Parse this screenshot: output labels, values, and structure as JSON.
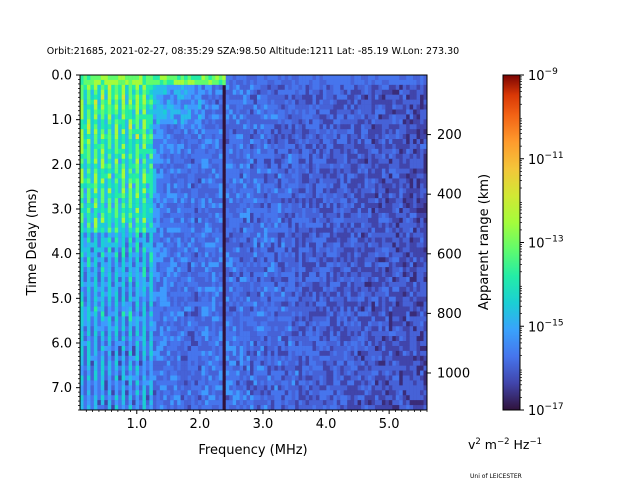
{
  "chart_data": {
    "type": "heatmap",
    "title": "Orbit:21685, 2021-02-27, 08:35:29 SZA:98.50 Altitude:1211 Lat: -85.19 W.Lon: 273.30",
    "xlabel": "Frequency (MHz)",
    "ylabel": "Time Delay (ms)",
    "y2label": "Apparent range (km)",
    "xlim": [
      0.1,
      5.6
    ],
    "ylim": [
      7.5,
      0.0
    ],
    "x_ticks": [
      {
        "value": 1.0,
        "label": "1.0"
      },
      {
        "value": 2.0,
        "label": "2.0"
      },
      {
        "value": 3.0,
        "label": "3.0"
      },
      {
        "value": 4.0,
        "label": "4.0"
      },
      {
        "value": 5.0,
        "label": "5.0"
      }
    ],
    "y_ticks": [
      {
        "value": 0.0,
        "label": "0.0"
      },
      {
        "value": 1.0,
        "label": "1.0"
      },
      {
        "value": 2.0,
        "label": "2.0"
      },
      {
        "value": 3.0,
        "label": "3.0"
      },
      {
        "value": 4.0,
        "label": "4.0"
      },
      {
        "value": 5.0,
        "label": "5.0"
      },
      {
        "value": 6.0,
        "label": "6.0"
      },
      {
        "value": 7.0,
        "label": "7.0"
      }
    ],
    "y2_ticks": [
      {
        "value": 200,
        "label": "200"
      },
      {
        "value": 400,
        "label": "400"
      },
      {
        "value": 600,
        "label": "600"
      },
      {
        "value": 800,
        "label": "800"
      },
      {
        "value": 1000,
        "label": "1000"
      }
    ],
    "colorbar": {
      "scale": "log",
      "colormap": "turbo",
      "range": [
        1e-17,
        1e-09
      ],
      "ticks": [
        {
          "value": 1e-09,
          "base": "10",
          "exp": "−9"
        },
        {
          "value": 1e-11,
          "base": "10",
          "exp": "−11"
        },
        {
          "value": 1e-13,
          "base": "10",
          "exp": "−13"
        },
        {
          "value": 1e-15,
          "base": "10",
          "exp": "−15"
        },
        {
          "value": 1e-17,
          "base": "10",
          "exp": "−17"
        }
      ],
      "units": {
        "v": "v",
        "two": "2",
        "m": " m",
        "m_exp": "−2",
        "hz": " Hz",
        "hz_exp": "−1"
      }
    },
    "credit": "Uni of LEICESTER",
    "features": {
      "dense_low_frequency_band_MHz": [
        0.1,
        1.3
      ],
      "vertical_low_intensity_stripe_MHz": 2.35,
      "surface_band_delay_ms": [
        0.0,
        0.2
      ]
    }
  }
}
